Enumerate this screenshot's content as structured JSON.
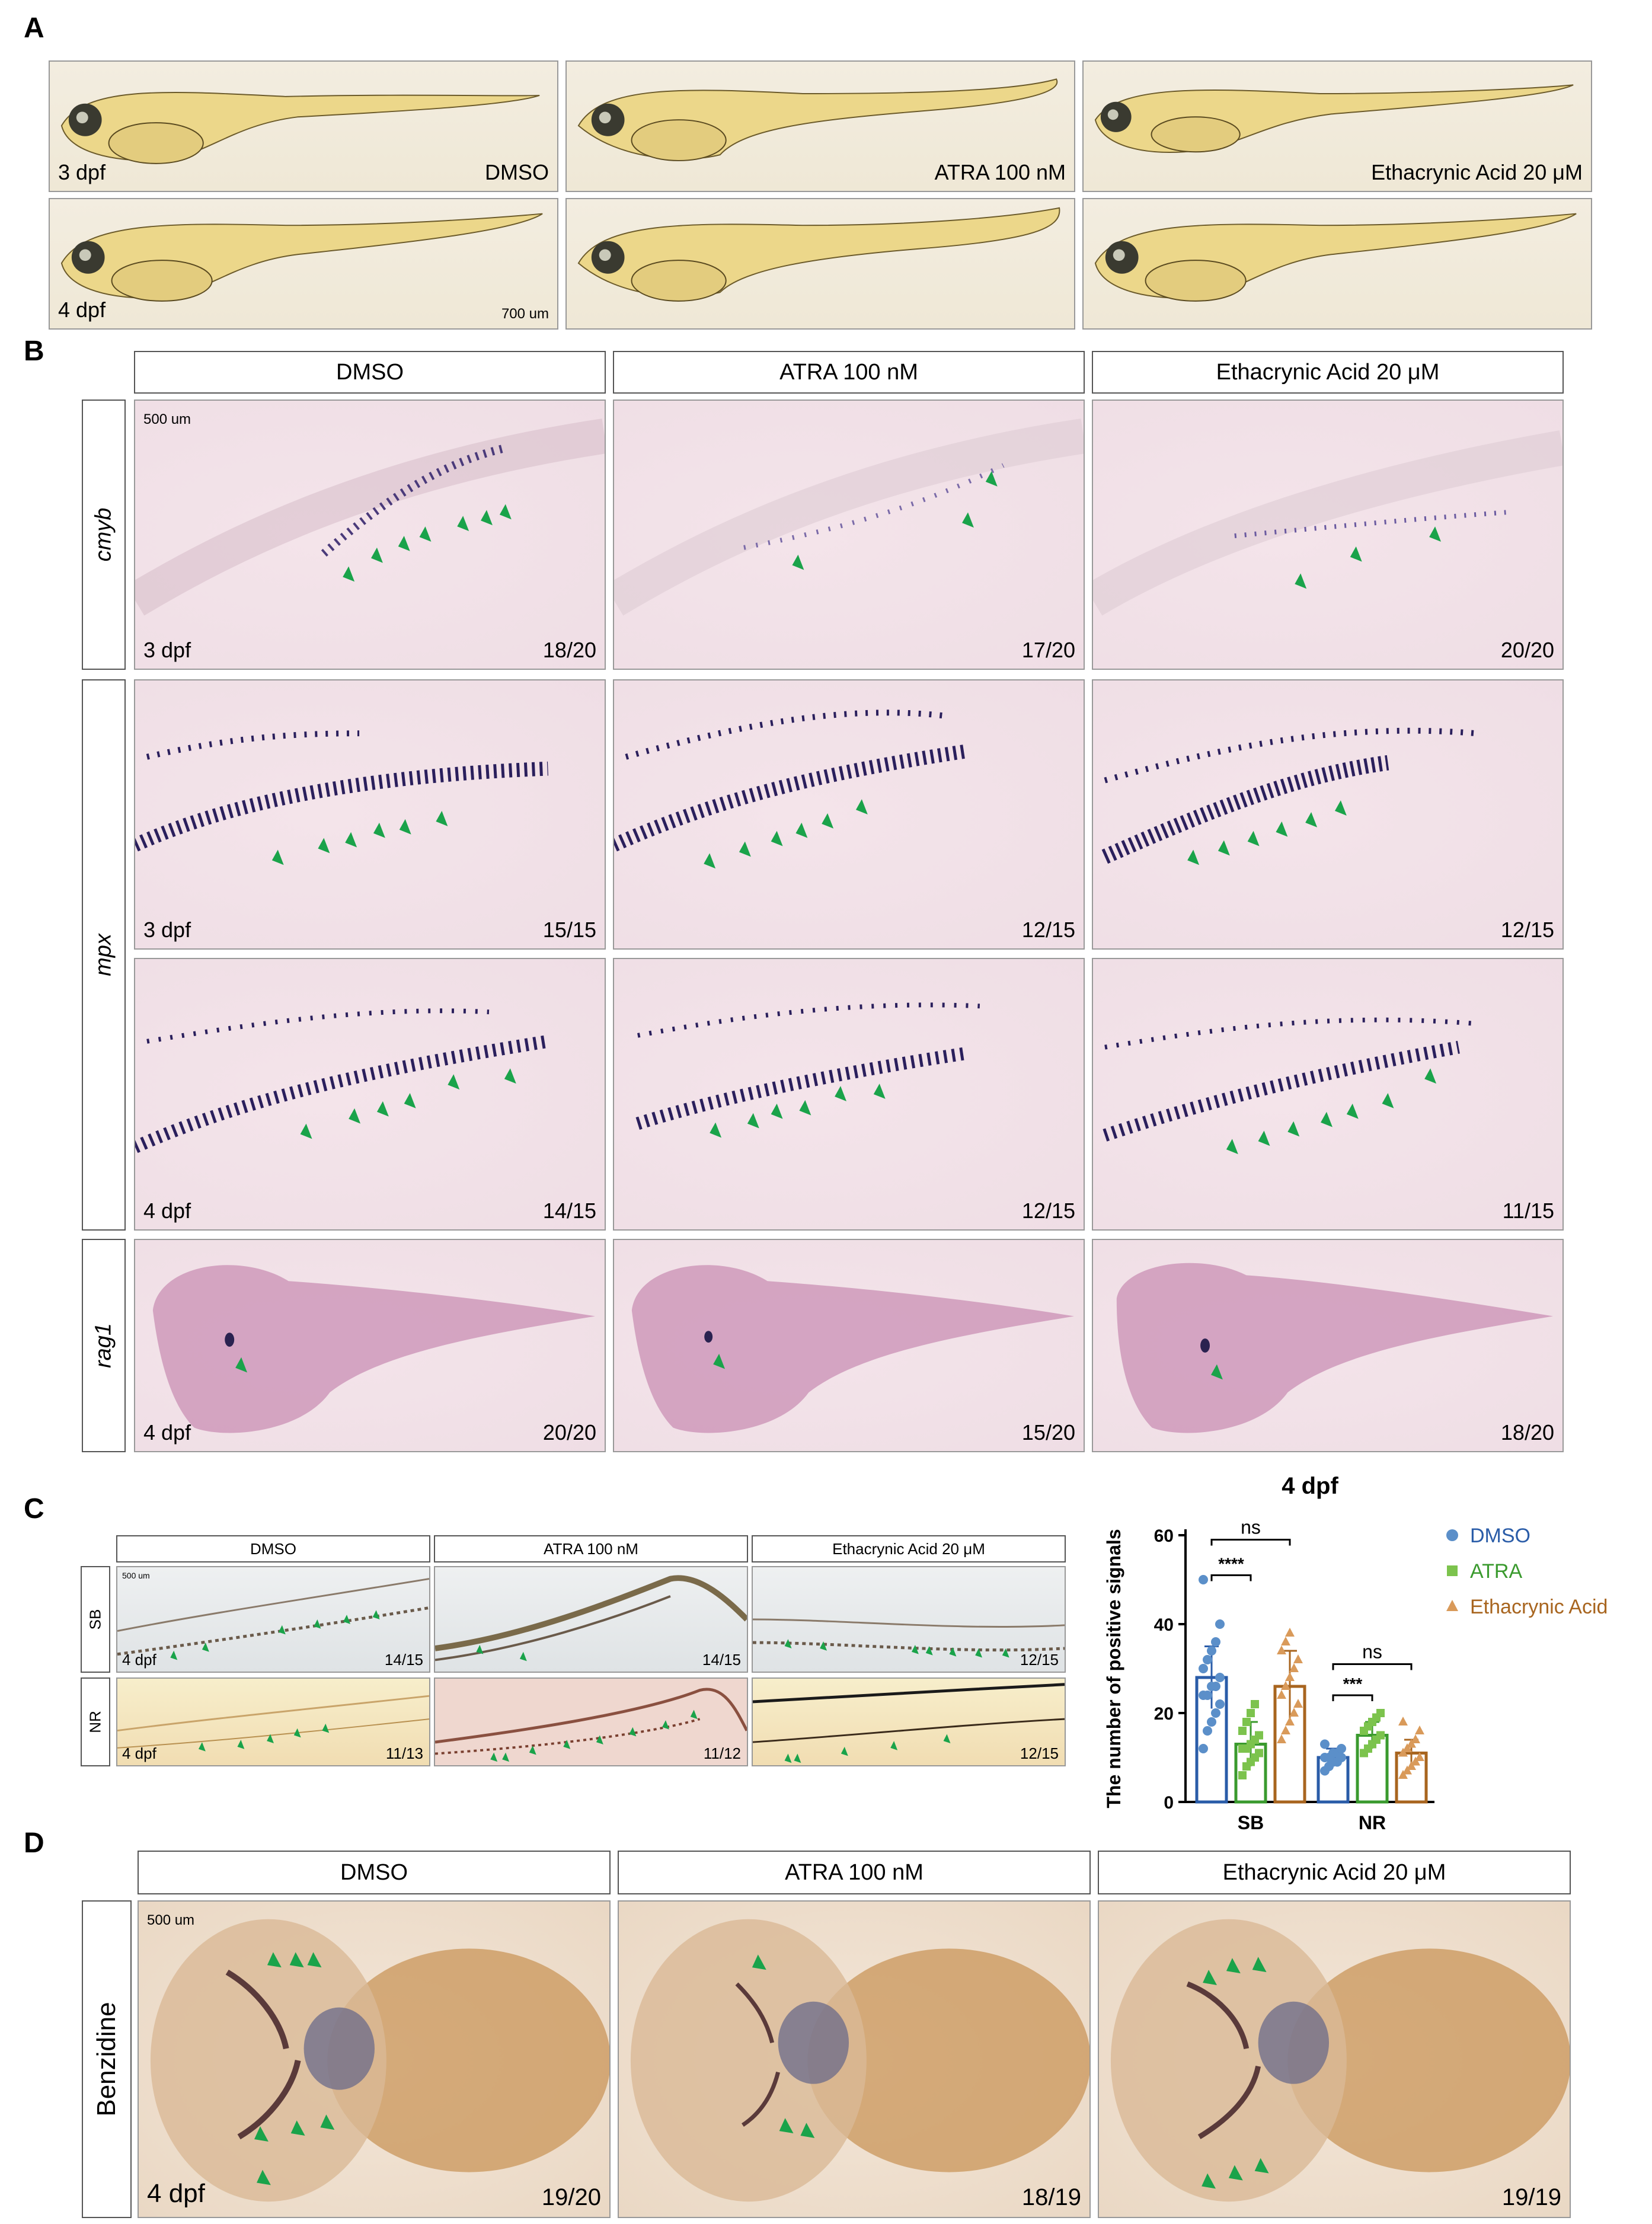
{
  "panel_labels": {
    "a": "A",
    "b": "B",
    "c": "C",
    "d": "D"
  },
  "section_a": {
    "treatments": [
      "DMSO",
      "ATRA 100 nM",
      "Ethacrynic Acid 20 μM"
    ],
    "stages": [
      "3 dpf",
      "4 dpf"
    ],
    "scale_bar": "700 um"
  },
  "section_b": {
    "columns": [
      "DMSO",
      "ATRA 100 nM",
      "Ethacrynic Acid 20 μM"
    ],
    "scale_bar": "500 um",
    "rows": [
      {
        "marker": "cmyb",
        "stage": "3 dpf",
        "counts": [
          "18/20",
          "17/20",
          "20/20"
        ]
      },
      {
        "marker": "mpx",
        "stage": "3 dpf",
        "counts": [
          "15/15",
          "12/15",
          "12/15"
        ]
      },
      {
        "marker": "mpx",
        "stage": "4 dpf",
        "counts": [
          "14/15",
          "12/15",
          "11/15"
        ]
      },
      {
        "marker": "rag1",
        "stage": "4 dpf",
        "counts": [
          "20/20",
          "15/20",
          "18/20"
        ]
      }
    ]
  },
  "section_c": {
    "columns": [
      "DMSO",
      "ATRA 100 nM",
      "Ethacrynic Acid 20 μM"
    ],
    "scale_bar": "500 um",
    "rows": [
      {
        "label": "SB",
        "stage": "4 dpf",
        "counts": [
          "14/15",
          "14/15",
          "12/15"
        ]
      },
      {
        "label": "NR",
        "stage": "4 dpf",
        "counts": [
          "11/13",
          "11/12",
          "12/15"
        ]
      }
    ]
  },
  "section_d": {
    "columns": [
      "DMSO",
      "ATRA 100 nM",
      "Ethacrynic Acid 20 μM"
    ],
    "row_label": "Benzidine",
    "stage": "4 dpf",
    "scale_bar": "500 um",
    "counts": [
      "19/20",
      "18/19",
      "19/19"
    ]
  },
  "colors": {
    "dmso": "#5b8fc9",
    "atra": "#7cc34d",
    "ea": "#d99a5a",
    "dmso_bar": "#2a5ca8",
    "atra_bar": "#3a9a2e",
    "ea_bar": "#a8651f",
    "arrow": "#1aa34a"
  },
  "chart_data": {
    "type": "bar",
    "title": "4 dpf",
    "ylabel": "The number of positive signals",
    "xlabel": "",
    "ylim": [
      0,
      60
    ],
    "yticks": [
      0,
      20,
      40,
      60
    ],
    "categories": [
      "SB",
      "NR"
    ],
    "series": [
      {
        "name": "DMSO",
        "values": [
          28,
          10
        ],
        "sd": [
          7,
          2
        ],
        "points": [
          [
            12,
            16,
            18,
            20,
            22,
            24,
            24,
            26,
            26,
            28,
            30,
            32,
            34,
            36,
            40,
            50
          ],
          [
            7,
            8,
            9,
            9,
            10,
            10,
            10,
            11,
            11,
            12,
            13
          ]
        ]
      },
      {
        "name": "ATRA",
        "values": [
          13,
          15
        ],
        "sd": [
          5,
          3
        ],
        "points": [
          [
            6,
            8,
            9,
            10,
            11,
            12,
            12,
            13,
            14,
            15,
            16,
            18,
            20,
            22
          ],
          [
            11,
            12,
            13,
            14,
            15,
            16,
            17,
            18,
            19,
            20
          ]
        ]
      },
      {
        "name": "Ethacrynic Acid",
        "values": [
          26,
          11
        ],
        "sd": [
          8,
          3
        ],
        "points": [
          [
            14,
            16,
            18,
            20,
            22,
            24,
            26,
            28,
            30,
            32,
            34,
            36,
            38
          ],
          [
            6,
            7,
            8,
            9,
            10,
            11,
            12,
            13,
            14,
            16,
            18
          ]
        ]
      }
    ],
    "significance": [
      {
        "pair": "SB DMSO vs ATRA",
        "label": "****"
      },
      {
        "pair": "SB DMSO vs Ethacrynic Acid",
        "label": "ns"
      },
      {
        "pair": "NR DMSO vs ATRA",
        "label": "***"
      },
      {
        "pair": "NR DMSO vs Ethacrynic Acid",
        "label": "ns"
      }
    ]
  }
}
